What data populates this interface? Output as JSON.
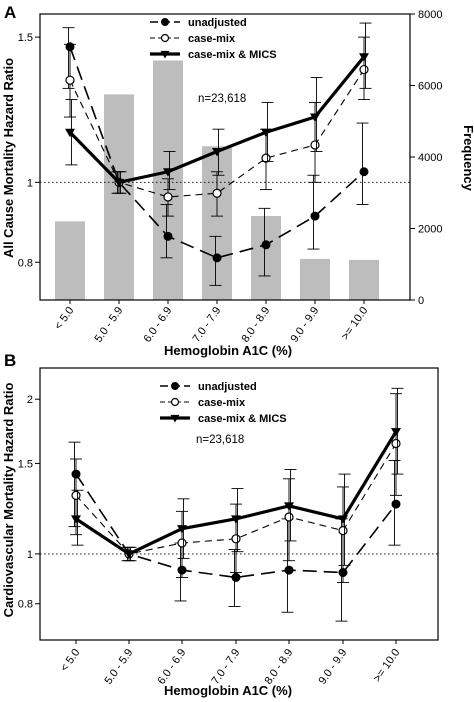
{
  "chart_data": [
    {
      "panel": "A",
      "type": "line",
      "xlabel": "Hemoglobin A1C (%)",
      "ylabel": "All Cause Mortality Hazard Ratio",
      "y2label": "Frequency",
      "categories": [
        "< 5.0",
        "5.0 - 5.9",
        "6.0 - 6.9",
        "7.0 - 7.9",
        "8.0 - 8.9",
        "9.0 - 9.9",
        ">= 10.0"
      ],
      "ylim": [
        0.72,
        1.6
      ],
      "y_scale": "log",
      "yticks": [
        "0.8",
        "1",
        "1.5"
      ],
      "y2lim": [
        0,
        8000
      ],
      "y2ticks": [
        "0",
        "2000",
        "4000",
        "6000",
        "8000"
      ],
      "reference_line": 1,
      "annotation": "n=23,618",
      "legend_position": "top-left",
      "frequency_bars": [
        2200,
        5750,
        6700,
        4300,
        2350,
        1150,
        1120
      ],
      "series": [
        {
          "name": "unadjusted",
          "marker": "filled-circle",
          "style": "long-dash",
          "values": [
            1.46,
            1.0,
            0.86,
            0.81,
            0.84,
            0.91,
            1.03
          ],
          "err_low": [
            1.3,
            0.97,
            0.81,
            0.75,
            0.77,
            0.83,
            0.94
          ],
          "err_high": [
            1.54,
            1.03,
            0.94,
            0.86,
            0.93,
            1.02,
            1.18
          ]
        },
        {
          "name": "case-mix",
          "marker": "open-circle",
          "style": "short-dash",
          "values": [
            1.33,
            1.0,
            0.96,
            0.97,
            1.07,
            1.11,
            1.37
          ],
          "err_low": [
            1.2,
            0.97,
            0.91,
            0.91,
            0.98,
            1.0,
            1.26
          ],
          "err_high": [
            1.47,
            1.03,
            1.01,
            1.03,
            1.16,
            1.25,
            1.5
          ]
        },
        {
          "name": "case-mix & MICS",
          "marker": "filled-triangle-down",
          "style": "solid-thick",
          "values": [
            1.15,
            1.0,
            1.03,
            1.09,
            1.15,
            1.2,
            1.42
          ],
          "err_low": [
            1.05,
            0.97,
            0.98,
            1.02,
            1.06,
            1.09,
            1.3
          ],
          "err_high": [
            1.26,
            1.03,
            1.09,
            1.16,
            1.25,
            1.34,
            1.56
          ]
        }
      ]
    },
    {
      "panel": "B",
      "type": "line",
      "xlabel": "Hemoglobin A1C (%)",
      "ylabel": "Cardiovascular Mortality Hazard Ratio",
      "categories": [
        "< 5.0",
        "5.0 - 5.9",
        "6.0 - 6.9",
        "7.0 - 7.9",
        "8.0 - 8.9",
        "9.0 - 9.9",
        ">= 10.0"
      ],
      "ylim": [
        0.68,
        2.3
      ],
      "y_scale": "log",
      "yticks": [
        "0.8",
        "1",
        "1.5",
        "2"
      ],
      "reference_line": 1,
      "annotation": "n=23,618",
      "legend_position": "top-center",
      "series": [
        {
          "name": "unadjusted",
          "marker": "filled-circle",
          "style": "long-dash",
          "values": [
            1.43,
            1.0,
            0.93,
            0.9,
            0.93,
            0.92,
            1.25
          ],
          "err_low": [
            1.13,
            0.97,
            0.81,
            0.79,
            0.77,
            0.74,
            1.04
          ],
          "err_high": [
            1.65,
            1.03,
            1.05,
            1.02,
            1.17,
            1.17,
            1.52
          ]
        },
        {
          "name": "case-mix",
          "marker": "open-circle",
          "style": "short-dash",
          "values": [
            1.3,
            1.0,
            1.05,
            1.07,
            1.18,
            1.11,
            1.64
          ],
          "err_low": [
            1.09,
            0.97,
            0.9,
            0.92,
            0.97,
            0.88,
            1.3
          ],
          "err_high": [
            1.53,
            1.03,
            1.21,
            1.25,
            1.4,
            1.35,
            2.05
          ]
        },
        {
          "name": "case-mix & MICS",
          "marker": "filled-triangle-down",
          "style": "solid-thick",
          "values": [
            1.17,
            1.0,
            1.12,
            1.17,
            1.24,
            1.17,
            1.73
          ],
          "err_low": [
            1.04,
            0.97,
            0.98,
            1.01,
            1.06,
            0.95,
            1.43
          ],
          "err_high": [
            1.33,
            1.03,
            1.28,
            1.34,
            1.46,
            1.43,
            2.1
          ]
        }
      ]
    }
  ]
}
